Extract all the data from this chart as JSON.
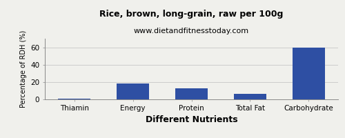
{
  "title": "Rice, brown, long-grain, raw per 100g",
  "subtitle": "www.dietandfitnesstoday.com",
  "xlabel": "Different Nutrients",
  "ylabel": "Percentage of RDH (%)",
  "categories": [
    "Thiamin",
    "Energy",
    "Protein",
    "Total Fat",
    "Carbohydrate"
  ],
  "values": [
    0.5,
    18,
    13,
    6,
    59.5
  ],
  "bar_color": "#2e4fa3",
  "ylim": [
    0,
    70
  ],
  "yticks": [
    0,
    20,
    40,
    60
  ],
  "background_color": "#f0f0ec",
  "title_fontsize": 9,
  "subtitle_fontsize": 8,
  "xlabel_fontsize": 9,
  "ylabel_fontsize": 7,
  "tick_fontsize": 7.5,
  "bar_width": 0.55
}
